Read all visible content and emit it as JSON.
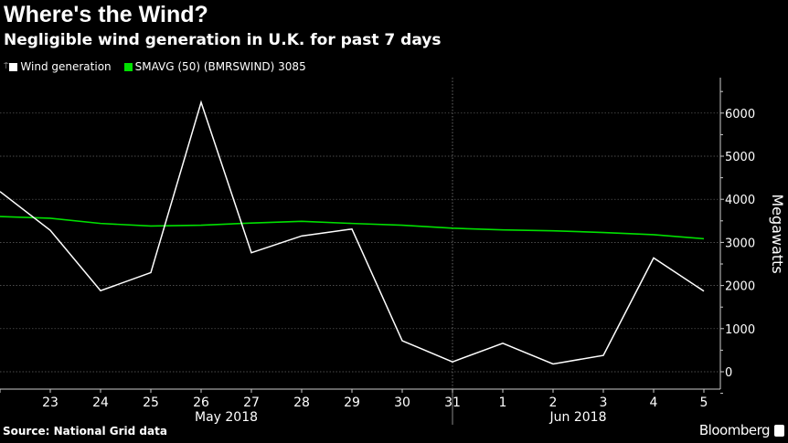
{
  "title": "Where's the Wind?",
  "subtitle": "Negligible wind generation in U.K. for past 7 days",
  "source": "Source: National Grid data",
  "brand": "Bloomberg",
  "chart_data": {
    "type": "line",
    "x": [
      "May 22",
      "May 23",
      "May 24",
      "May 25",
      "May 26",
      "May 27",
      "May 28",
      "May 29",
      "May 30",
      "May 31",
      "Jun 1",
      "Jun 2",
      "Jun 3",
      "Jun 4",
      "Jun 5"
    ],
    "x_tick_labels": [
      "",
      "23",
      "24",
      "25",
      "26",
      "27",
      "28",
      "29",
      "30",
      "31",
      "1",
      "2",
      "3",
      "4",
      "5"
    ],
    "x_group_labels": [
      "May 2018",
      "Jun 2018"
    ],
    "ylabel": "Megawatts",
    "y_ticks": [
      0,
      1000,
      2000,
      3000,
      4000,
      5000,
      6000
    ],
    "ylim": [
      -400,
      6800
    ],
    "y_axis_side": "right",
    "grid": true,
    "legend_position": "top-left",
    "series": [
      {
        "name": "Wind generation",
        "color": "#ffffff",
        "values": [
          4180,
          3280,
          1880,
          2300,
          6250,
          2760,
          3150,
          3310,
          720,
          230,
          660,
          180,
          380,
          2640,
          1870
        ]
      },
      {
        "name": "SMAVG (50) (BMRSWIND) 3085",
        "color": "#00e000",
        "values": [
          3600,
          3560,
          3440,
          3380,
          3400,
          3450,
          3490,
          3440,
          3400,
          3330,
          3290,
          3270,
          3230,
          3180,
          3085
        ]
      }
    ]
  }
}
